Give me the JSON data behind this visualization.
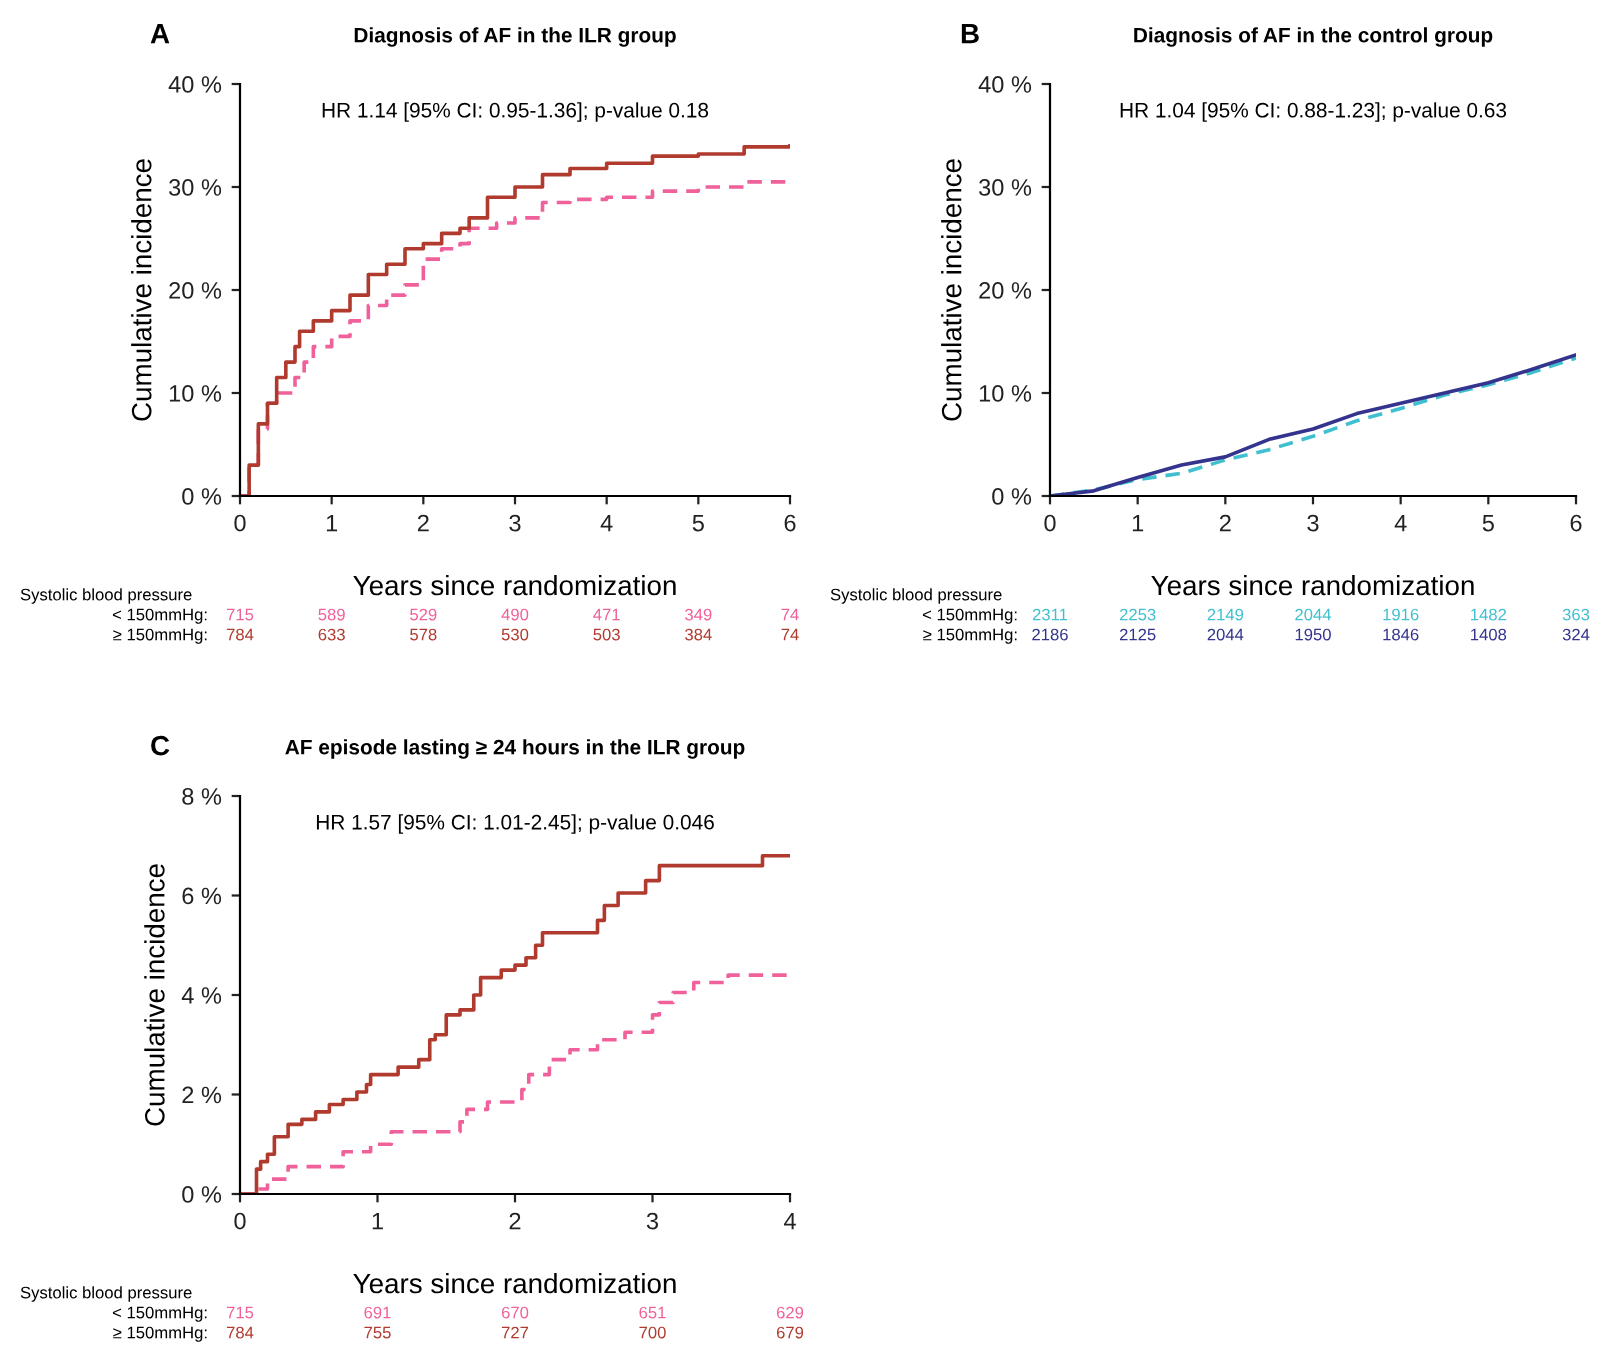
{
  "chart_data": [
    {
      "type": "step",
      "title": "Diagnosis of AF in the ILR group",
      "xlabel": "Years since randomization",
      "ylabel": "Cumulative incidence",
      "xlim": [
        0,
        6
      ],
      "xticks": [
        0,
        1,
        2,
        3,
        4,
        5,
        6
      ],
      "ylim": [
        0,
        40
      ],
      "yticks": [
        {
          "value": 0,
          "label": "0 %"
        },
        {
          "value": 10,
          "label": "10 %"
        },
        {
          "value": 20,
          "label": "20 %"
        },
        {
          "value": 30,
          "label": "30 %"
        },
        {
          "value": 40,
          "label": "40 %"
        }
      ],
      "grid": false,
      "legend": false,
      "annotations": [
        "A",
        "HR 1.14 [95% CI: 0.95-1.36]; p-value 0.18",
        "Systolic blood pressure",
        "< 150mmHg:",
        "≥ 150mmHg:",
        "715",
        "589",
        "529",
        "490",
        "471",
        "349",
        "74",
        "784",
        "633",
        "578",
        "530",
        "503",
        "384",
        "74"
      ],
      "series": [
        {
          "color": "#f0609a",
          "line_style": "dashed",
          "x": [
            0,
            0.05,
            0.1,
            0.2,
            0.3,
            0.4,
            0.6,
            0.7,
            0.8,
            1.0,
            1.2,
            1.4,
            1.6,
            1.8,
            2.0,
            2.2,
            2.4,
            2.5,
            2.8,
            3.0,
            3.3,
            3.6,
            4.0,
            4.5,
            5.0,
            5.5,
            6.0
          ],
          "values": [
            0,
            0,
            3,
            6.5,
            9,
            10,
            11.5,
            13,
            14.5,
            15.5,
            17,
            18.5,
            19.5,
            20.5,
            23,
            24,
            24.5,
            26,
            26.5,
            27,
            28.5,
            28.8,
            29,
            29.6,
            30,
            30.5,
            30.5
          ]
        },
        {
          "color": "#b03a2e",
          "line_style": "solid",
          "x": [
            0,
            0.05,
            0.1,
            0.2,
            0.3,
            0.4,
            0.5,
            0.6,
            0.65,
            0.8,
            1.0,
            1.2,
            1.4,
            1.6,
            1.8,
            2.0,
            2.2,
            2.4,
            2.5,
            2.7,
            3.0,
            3.3,
            3.6,
            4.0,
            4.5,
            5.0,
            5.5,
            6.0
          ],
          "values": [
            0,
            0,
            3,
            7,
            9,
            11.5,
            13,
            14.5,
            16,
            17,
            18,
            19.5,
            21.5,
            22.5,
            24,
            24.5,
            25.5,
            26,
            27,
            29,
            30,
            31.2,
            31.8,
            32.3,
            33,
            33.2,
            33.9,
            34
          ]
        }
      ]
    },
    {
      "type": "line",
      "title": "Diagnosis of AF in the control group",
      "xlabel": "Years since randomization",
      "ylabel": "Cumulative incidence",
      "xlim": [
        0,
        6
      ],
      "xticks": [
        0,
        1,
        2,
        3,
        4,
        5,
        6
      ],
      "ylim": [
        0,
        40
      ],
      "yticks": [
        {
          "value": 0,
          "label": "0 %"
        },
        {
          "value": 10,
          "label": "10 %"
        },
        {
          "value": 20,
          "label": "20 %"
        },
        {
          "value": 30,
          "label": "30 %"
        },
        {
          "value": 40,
          "label": "40 %"
        }
      ],
      "grid": false,
      "legend": false,
      "annotations": [
        "B",
        "HR 1.04 [95% CI: 0.88-1.23]; p-value 0.63",
        "Systolic blood pressure",
        "< 150mmHg:",
        "≥ 150mmHg:",
        "2311",
        "2253",
        "2149",
        "2044",
        "1916",
        "1482",
        "363",
        "2186",
        "2125",
        "2044",
        "1950",
        "1846",
        "1408",
        "324"
      ],
      "series": [
        {
          "color": "#3fbfd0",
          "line_style": "dashed",
          "x": [
            0,
            0.5,
            1,
            1.5,
            2,
            2.5,
            3,
            3.5,
            4,
            4.5,
            5,
            5.5,
            6
          ],
          "values": [
            0,
            0.6,
            1.6,
            2.2,
            3.5,
            4.5,
            5.8,
            7.3,
            8.5,
            9.8,
            10.8,
            12,
            13.4
          ]
        },
        {
          "color": "#34348f",
          "line_style": "solid",
          "x": [
            0,
            0.5,
            1,
            1.5,
            2,
            2.5,
            3,
            3.5,
            4,
            4.5,
            5,
            5.5,
            6
          ],
          "values": [
            0,
            0.5,
            1.8,
            3,
            3.8,
            5.5,
            6.5,
            8,
            9,
            10,
            11,
            12.3,
            13.7
          ]
        }
      ]
    },
    {
      "type": "step",
      "title": "AF episode lasting ≥ 24 hours in the ILR group",
      "xlabel": "Years since randomization",
      "ylabel": "Cumulative incidence",
      "xlim": [
        0,
        4
      ],
      "xticks": [
        0,
        1,
        2,
        3,
        4
      ],
      "ylim": [
        0,
        8
      ],
      "yticks": [
        {
          "value": 0,
          "label": "0 %"
        },
        {
          "value": 2,
          "label": "2 %"
        },
        {
          "value": 4,
          "label": "4 %"
        },
        {
          "value": 6,
          "label": "6 %"
        },
        {
          "value": 8,
          "label": "8 %"
        }
      ],
      "grid": false,
      "legend": false,
      "annotations": [
        "C",
        "HR 1.57 [95% CI: 1.01-2.45]; p-value 0.046",
        "Systolic blood pressure",
        "< 150mmHg:",
        "≥ 150mmHg:",
        "715",
        "691",
        "670",
        "651",
        "629",
        "784",
        "755",
        "727",
        "700",
        "679"
      ],
      "series": [
        {
          "color": "#f0609a",
          "line_style": "dashed",
          "x": [
            0,
            0.12,
            0.2,
            0.35,
            0.75,
            0.95,
            1.1,
            1.6,
            1.65,
            1.8,
            2.05,
            2.1,
            2.25,
            2.4,
            2.6,
            2.8,
            3.0,
            3.05,
            3.15,
            3.3,
            3.55,
            4.0
          ],
          "values": [
            0,
            0.1,
            0.3,
            0.55,
            0.85,
            1.0,
            1.25,
            1.45,
            1.7,
            1.85,
            2.1,
            2.4,
            2.7,
            2.9,
            3.1,
            3.25,
            3.6,
            3.85,
            4.05,
            4.25,
            4.4,
            4.4
          ]
        },
        {
          "color": "#b03a2e",
          "line_style": "solid",
          "x": [
            0,
            0.12,
            0.15,
            0.2,
            0.25,
            0.35,
            0.45,
            0.55,
            0.65,
            0.75,
            0.85,
            0.92,
            0.95,
            1.15,
            1.3,
            1.38,
            1.42,
            1.5,
            1.6,
            1.7,
            1.75,
            1.9,
            2.0,
            2.08,
            2.15,
            2.2,
            2.6,
            2.65,
            2.75,
            2.95,
            3.05,
            3.8,
            4.0
          ],
          "values": [
            0,
            0.5,
            0.65,
            0.8,
            1.15,
            1.4,
            1.5,
            1.65,
            1.8,
            1.9,
            2.05,
            2.2,
            2.4,
            2.55,
            2.7,
            3.1,
            3.2,
            3.6,
            3.7,
            4.0,
            4.35,
            4.5,
            4.6,
            4.75,
            5.0,
            5.25,
            5.5,
            5.8,
            6.05,
            6.3,
            6.6,
            6.8,
            6.8
          ]
        }
      ]
    }
  ]
}
